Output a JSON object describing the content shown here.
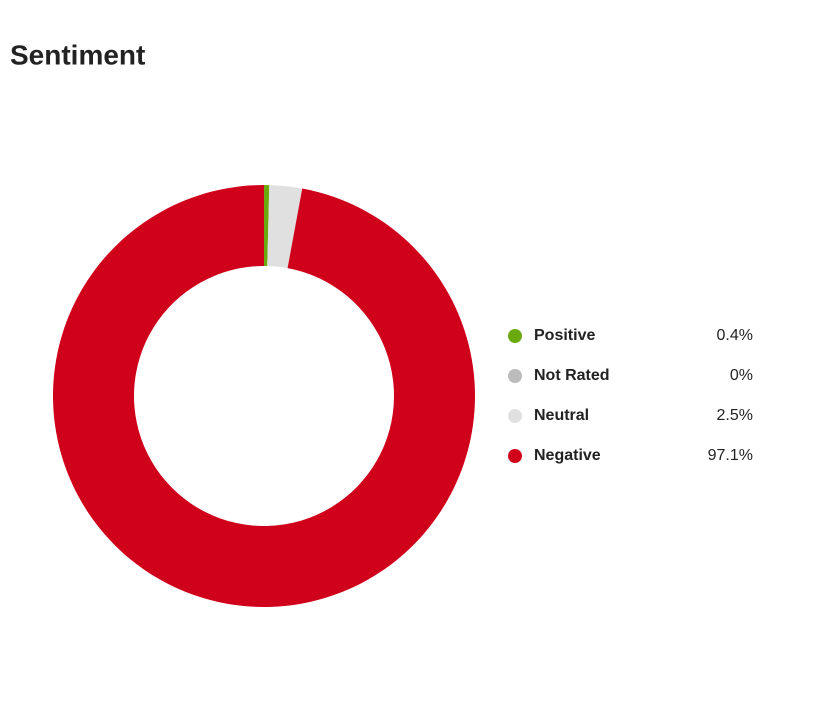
{
  "chart_data": {
    "type": "donut",
    "title": "Sentiment",
    "categories": [
      "Positive",
      "Not Rated",
      "Neutral",
      "Negative"
    ],
    "values": [
      0.4,
      0,
      2.5,
      97.1
    ],
    "value_labels": [
      "0.4%",
      "0%",
      "2.5%",
      "97.1%"
    ],
    "colors": [
      "#6aaa0f",
      "#bbbbbb",
      "#e0e0e0",
      "#d0021b"
    ]
  }
}
